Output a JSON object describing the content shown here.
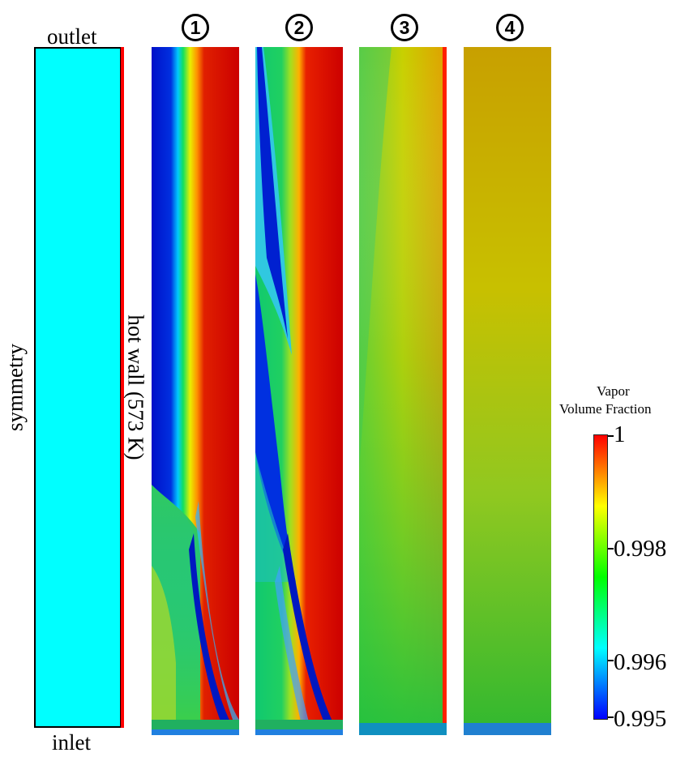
{
  "domain_panel": {
    "outlet": "outlet",
    "inlet": "inlet",
    "symmetry": "symmetry",
    "hot_wall": "hot wall  (573 K)"
  },
  "cases": [
    {
      "number": "1"
    },
    {
      "number": "2"
    },
    {
      "number": "3"
    },
    {
      "number": "4"
    }
  ],
  "colorbar": {
    "title_line1": "Vapor",
    "title_line2": "Volume Fraction",
    "ticks": [
      "1",
      "0.998",
      "0.996",
      "0.995"
    ],
    "min": 0.995,
    "max": 1,
    "colormap": [
      "#0000ff",
      "#00ffff",
      "#00ff00",
      "#ffff00",
      "#ff0000"
    ]
  },
  "colors": {
    "domain_fill": "#00ffff",
    "hot_wall": "#ff0000"
  }
}
